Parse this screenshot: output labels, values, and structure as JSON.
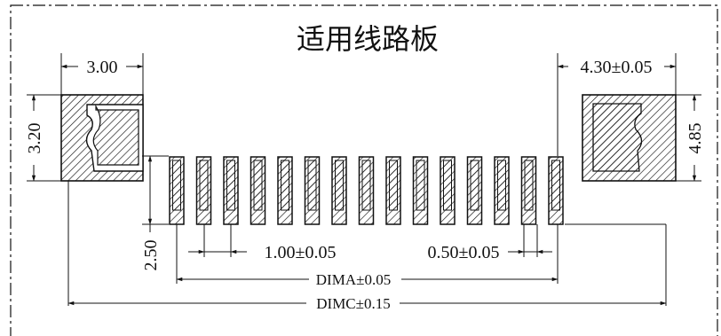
{
  "title": "适用线路板",
  "dims": {
    "top_left_width": "3.00",
    "top_right_width": "4.30±0.05",
    "left_height": "3.20",
    "right_height": "4.85",
    "pad_length": "2.50",
    "pitch_label": "1.00±0.05",
    "pad_width_label": "0.50±0.05",
    "dim_a": "DIMA±0.05",
    "dim_c": "DIMC±0.15"
  },
  "colors": {
    "line": "#111111",
    "background": "#ffffff"
  },
  "pad_count": 15
}
